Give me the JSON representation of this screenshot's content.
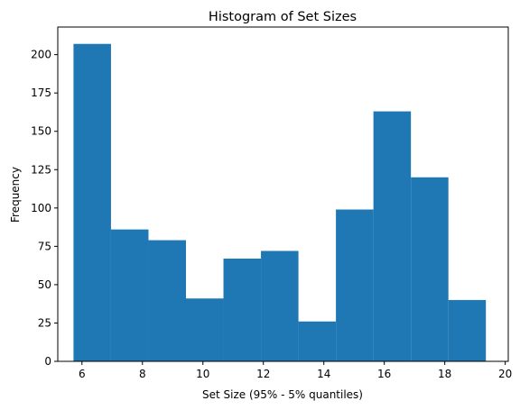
{
  "chart_data": {
    "type": "bar",
    "title": "Histogram of Set Sizes",
    "xlabel": "Set Size (95% - 5% quantiles)",
    "ylabel": "Frequency",
    "xlim": [
      5.2,
      20.1
    ],
    "ylim": [
      0,
      218
    ],
    "grid": false,
    "bar_color": "#1f77b4",
    "bins": [
      {
        "x0": 5.72,
        "x1": 6.96,
        "count": 207
      },
      {
        "x0": 6.96,
        "x1": 8.2,
        "count": 86
      },
      {
        "x0": 8.2,
        "x1": 9.44,
        "count": 79
      },
      {
        "x0": 9.44,
        "x1": 10.68,
        "count": 41
      },
      {
        "x0": 10.68,
        "x1": 11.92,
        "count": 67
      },
      {
        "x0": 11.92,
        "x1": 13.16,
        "count": 72
      },
      {
        "x0": 13.16,
        "x1": 14.4,
        "count": 26
      },
      {
        "x0": 14.4,
        "x1": 15.64,
        "count": 99
      },
      {
        "x0": 15.64,
        "x1": 16.88,
        "count": 163
      },
      {
        "x0": 16.88,
        "x1": 18.12,
        "count": 120
      },
      {
        "x0": 18.12,
        "x1": 19.36,
        "count": 40
      }
    ],
    "x_ticks": [
      6,
      8,
      10,
      12,
      14,
      16,
      18,
      20
    ],
    "y_ticks": [
      0,
      25,
      50,
      75,
      100,
      125,
      150,
      175,
      200
    ]
  }
}
